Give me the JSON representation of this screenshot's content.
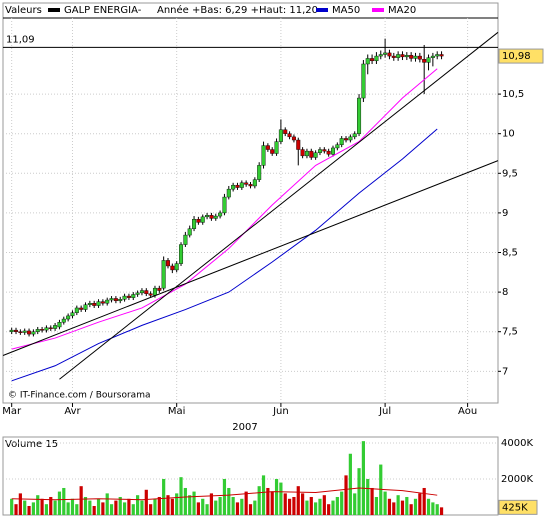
{
  "header": {
    "label": "Valeurs",
    "range_text": "Année +Bas: 6,29 +Haut: 11,20"
  },
  "chart_data": [
    {
      "type": "candlestick",
      "series": [
        {
          "name": "GALP ENERGIA-",
          "color": "#000000",
          "open": [
            7.5,
            7.52,
            7.5,
            7.49,
            7.51,
            7.47,
            7.5,
            7.53,
            7.52,
            7.55,
            7.54,
            7.56,
            7.62,
            7.66,
            7.7,
            7.74,
            7.8,
            7.78,
            7.84,
            7.86,
            7.83,
            7.88,
            7.86,
            7.9,
            7.92,
            7.89,
            7.91,
            7.95,
            7.93,
            7.97,
            7.99,
            8.02,
            7.98,
            7.96,
            8.05,
            8.05,
            8.4,
            8.33,
            8.28,
            8.36,
            8.6,
            8.72,
            8.8,
            8.92,
            8.88,
            8.95,
            8.97,
            8.93,
            8.96,
            9.0,
            9.2,
            9.3,
            9.35,
            9.32,
            9.38,
            9.36,
            9.34,
            9.42,
            9.6,
            9.85,
            9.8,
            9.75,
            9.9,
            10.05,
            10.0,
            9.96,
            9.92,
            9.8,
            9.72,
            9.78,
            9.7,
            9.76,
            9.8,
            9.78,
            9.74,
            9.82,
            9.86,
            9.94,
            9.92,
            9.96,
            10.0,
            10.45,
            10.88,
            10.95,
            10.92,
            10.98,
            11.0,
            11.02,
            10.98,
            10.96,
            11.0,
            10.97,
            10.99,
            10.95,
            10.98,
            10.94,
            10.9,
            10.96,
            10.98,
            11.0
          ],
          "high": [
            7.55,
            7.55,
            7.53,
            7.54,
            7.54,
            7.53,
            7.56,
            7.56,
            7.58,
            7.58,
            7.61,
            7.65,
            7.69,
            7.73,
            7.77,
            7.83,
            7.83,
            7.87,
            7.89,
            7.89,
            7.91,
            7.91,
            7.93,
            7.95,
            7.95,
            7.94,
            7.98,
            7.98,
            8.0,
            8.02,
            8.05,
            8.05,
            8.01,
            8.08,
            8.08,
            8.45,
            8.43,
            8.36,
            8.39,
            8.63,
            8.76,
            8.84,
            8.96,
            8.95,
            8.98,
            9.0,
            9.0,
            8.99,
            9.03,
            9.24,
            9.34,
            9.38,
            9.38,
            9.41,
            9.41,
            9.39,
            9.45,
            9.64,
            9.9,
            9.88,
            9.83,
            9.94,
            10.18,
            10.08,
            10.03,
            9.99,
            9.95,
            9.83,
            9.81,
            9.81,
            9.79,
            9.83,
            9.83,
            9.81,
            9.85,
            9.89,
            9.97,
            9.97,
            9.99,
            10.03,
            10.5,
            10.93,
            11.0,
            11.0,
            11.03,
            11.05,
            11.2,
            11.06,
            11.02,
            11.04,
            11.04,
            11.03,
            11.03,
            11.02,
            11.02,
            11.12,
            11.0,
            11.02,
            11.04,
            11.04
          ],
          "low": [
            7.47,
            7.47,
            7.46,
            7.46,
            7.44,
            7.44,
            7.47,
            7.49,
            7.49,
            7.51,
            7.51,
            7.53,
            7.59,
            7.63,
            7.67,
            7.71,
            7.75,
            7.75,
            7.81,
            7.8,
            7.8,
            7.83,
            7.83,
            7.87,
            7.86,
            7.86,
            7.88,
            7.9,
            7.9,
            7.94,
            7.96,
            7.95,
            7.93,
            7.93,
            7.99,
            8.02,
            8.3,
            8.24,
            8.25,
            8.33,
            8.57,
            8.69,
            8.77,
            8.85,
            8.85,
            8.92,
            8.9,
            8.9,
            8.93,
            8.97,
            9.17,
            9.27,
            9.29,
            9.29,
            9.33,
            9.31,
            9.31,
            9.39,
            9.56,
            9.77,
            9.72,
            9.72,
            9.87,
            9.97,
            9.93,
            9.89,
            9.6,
            9.69,
            9.69,
            9.67,
            9.67,
            9.73,
            9.75,
            9.71,
            9.71,
            9.79,
            9.83,
            9.89,
            9.89,
            9.93,
            9.97,
            10.4,
            10.75,
            10.88,
            10.88,
            10.94,
            10.96,
            10.94,
            10.92,
            10.92,
            10.93,
            10.93,
            10.91,
            10.91,
            10.9,
            10.5,
            10.8,
            10.85,
            10.94,
            10.94
          ],
          "close": [
            7.52,
            7.5,
            7.49,
            7.51,
            7.47,
            7.5,
            7.53,
            7.52,
            7.55,
            7.54,
            7.58,
            7.62,
            7.66,
            7.7,
            7.74,
            7.8,
            7.78,
            7.84,
            7.86,
            7.83,
            7.88,
            7.86,
            7.9,
            7.92,
            7.89,
            7.91,
            7.95,
            7.93,
            7.97,
            7.99,
            8.02,
            7.98,
            7.96,
            8.05,
            8.02,
            8.4,
            8.33,
            8.28,
            8.36,
            8.6,
            8.72,
            8.8,
            8.92,
            8.88,
            8.95,
            8.97,
            8.93,
            8.96,
            9.0,
            9.2,
            9.3,
            9.35,
            9.32,
            9.38,
            9.36,
            9.34,
            9.42,
            9.6,
            9.85,
            9.8,
            9.75,
            9.9,
            10.05,
            10.0,
            9.96,
            9.92,
            9.8,
            9.72,
            9.78,
            9.7,
            9.76,
            9.8,
            9.78,
            9.74,
            9.82,
            9.86,
            9.94,
            9.92,
            9.96,
            10.0,
            10.45,
            10.88,
            10.95,
            10.92,
            10.98,
            11.0,
            11.02,
            10.98,
            10.96,
            11.0,
            10.97,
            10.99,
            10.95,
            10.98,
            10.94,
            10.9,
            10.96,
            10.98,
            11.0,
            10.98
          ]
        },
        {
          "name": "MA50",
          "color": "#0000cc",
          "x": [
            0,
            10,
            20,
            30,
            40,
            50,
            60,
            70,
            80,
            90,
            98
          ],
          "values": [
            6.88,
            7.07,
            7.35,
            7.58,
            7.78,
            8.0,
            8.38,
            8.78,
            9.25,
            9.68,
            10.06
          ]
        },
        {
          "name": "MA20",
          "color": "#ff00ff",
          "x": [
            0,
            10,
            20,
            30,
            40,
            50,
            60,
            70,
            80,
            90,
            98
          ],
          "values": [
            7.28,
            7.42,
            7.62,
            7.8,
            8.1,
            8.55,
            9.1,
            9.6,
            9.9,
            10.45,
            10.82
          ]
        }
      ],
      "trend_lines": [
        {
          "x": [
            -2,
            112
          ],
          "values": [
            7.2,
            9.66
          ]
        },
        {
          "x": [
            11,
            112
          ],
          "values": [
            6.9,
            11.28
          ]
        }
      ],
      "reference_line": {
        "value": 11.09,
        "label": "11,09"
      },
      "last_price": {
        "value": 10.98,
        "label": "10,98"
      },
      "up_color": "#33cc33",
      "down_color": "#cc0000",
      "xlim": [
        -2,
        112
      ],
      "xticks": [
        {
          "value": 0,
          "label": "Mar"
        },
        {
          "value": 14,
          "label": "Avr"
        },
        {
          "value": 38,
          "label": "Mai"
        },
        {
          "value": 62,
          "label": "Jun"
        },
        {
          "value": 86,
          "label": "Jul"
        },
        {
          "value": 105,
          "label": "Aou"
        }
      ],
      "x_year": "2007",
      "ylim": [
        6.6,
        11.65
      ],
      "yticks": [
        7,
        {
          "value": 7.5,
          "label": "7,5"
        },
        8,
        {
          "value": 8.5,
          "label": "8,5"
        },
        9,
        {
          "value": 9.5,
          "label": "9,5"
        },
        10,
        {
          "value": 10.5,
          "label": "10,5"
        }
      ],
      "grid": true,
      "source": "© IT-Finance.com / Boursorama"
    },
    {
      "type": "bar",
      "title": "Volume 15",
      "values": [
        900,
        600,
        1200,
        800,
        500,
        700,
        1100,
        900,
        600,
        1000,
        800,
        1300,
        1500,
        700,
        900,
        600,
        1600,
        1000,
        800,
        500,
        900,
        700,
        1200,
        600,
        800,
        1000,
        700,
        900,
        600,
        1100,
        800,
        1400,
        600,
        900,
        1000,
        2000,
        1100,
        900,
        1200,
        2100,
        1500,
        1100,
        1300,
        700,
        900,
        600,
        1200,
        800,
        1000,
        2000,
        1500,
        1000,
        700,
        900,
        1300,
        600,
        800,
        1600,
        2200,
        1500,
        1300,
        2000,
        1800,
        1200,
        900,
        1000,
        1600,
        1200,
        800,
        1000,
        700,
        900,
        1100,
        600,
        800,
        1000,
        1300,
        2200,
        3400,
        1200,
        2600,
        4100,
        2000,
        1500,
        1000,
        2800,
        1300,
        900,
        700,
        1100,
        800,
        1000,
        600,
        900,
        1200,
        1500,
        900,
        700,
        600,
        425
      ],
      "ma": {
        "color": "#cc0000",
        "x": [
          0,
          10,
          20,
          30,
          40,
          50,
          60,
          70,
          80,
          90,
          98
        ],
        "values": [
          900,
          850,
          900,
          850,
          1000,
          1100,
          1300,
          1250,
          1500,
          1350,
          1100
        ]
      },
      "xlim": [
        -2,
        112
      ],
      "ylim": [
        0,
        4330
      ],
      "yticks": [
        {
          "value": 4000,
          "label": "4000K"
        },
        {
          "value": 2000,
          "label": "2000K"
        }
      ],
      "last_value": {
        "value": 425,
        "label": "425K"
      }
    }
  ]
}
